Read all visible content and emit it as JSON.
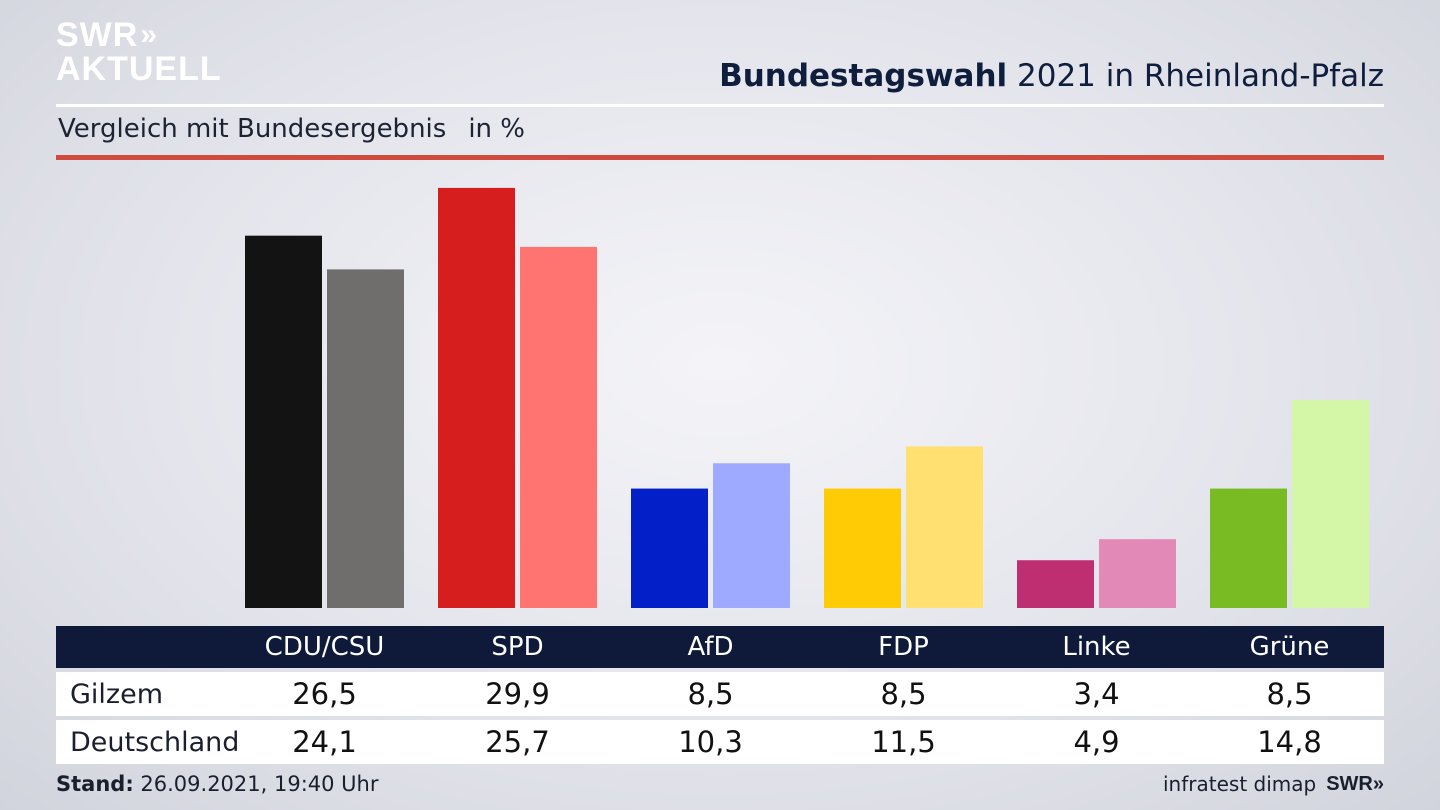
{
  "brand": {
    "line1": "SWR",
    "line2": "AKTUELL",
    "chevrons": "»"
  },
  "header": {
    "title_bold": "Bundestagswahl",
    "title_rest": " 2021 in Rheinland-Pfalz",
    "subtitle": "Vergleich mit Bundesergebnis",
    "unit": "in %"
  },
  "chart_data": {
    "type": "bar",
    "title": "Bundestagswahl 2021 in Rheinland-Pfalz",
    "subtitle": "Vergleich mit Bundesergebnis in %",
    "categories": [
      "CDU/CSU",
      "SPD",
      "AfD",
      "FDP",
      "Linke",
      "Grüne"
    ],
    "series": [
      {
        "name": "Gilzem",
        "values": [
          26.5,
          29.9,
          8.5,
          8.5,
          3.4,
          8.5
        ],
        "colors": [
          "#131313",
          "#d61e1e",
          "#0320c8",
          "#ffcb05",
          "#be2f71",
          "#78bb22"
        ]
      },
      {
        "name": "Deutschland",
        "values": [
          24.1,
          25.7,
          10.3,
          11.5,
          4.9,
          14.8
        ],
        "colors": [
          "#6f6e6c",
          "#ff7470",
          "#9eaaff",
          "#ffe071",
          "#e289b8",
          "#d4f7a7"
        ]
      }
    ],
    "value_labels": {
      "Gilzem": [
        "26,5",
        "29,9",
        "8,5",
        "8,5",
        "3,4",
        "8,5"
      ],
      "Deutschland": [
        "24,1",
        "25,7",
        "10,3",
        "11,5",
        "4,9",
        "14,8"
      ]
    },
    "ylim": [
      0,
      30
    ],
    "grid": false,
    "legend": "table-below"
  },
  "footer": {
    "stand_label": "Stand:",
    "stand_value": " 26.09.2021, 19:40 Uhr",
    "source": "infratest dimap",
    "brand": "SWR",
    "brand_chevrons": "»"
  }
}
